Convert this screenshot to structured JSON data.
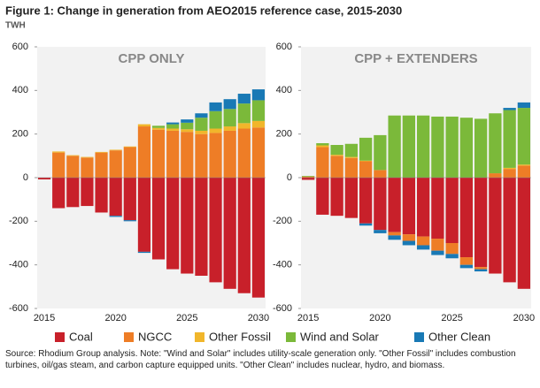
{
  "title": "Figure 1: Change in generation from AEO2015 reference case, 2015-2030",
  "unit": "TWH",
  "source": "Source: Rhodium Group analysis. Note: \"Wind and Solar\" includes utility-scale generation only. \"Other Fossil\" includes combustion turbines, oil/gas steam, and carbon capture equipped units. \"Other Clean\" includes nuclear, hydro, and biomass.",
  "chart_data": [
    {
      "type": "stacked-bar",
      "title": "CPP ONLY",
      "categories": [
        "2015",
        null,
        null,
        null,
        null,
        "2020",
        null,
        null,
        null,
        null,
        "2025",
        null,
        null,
        null,
        null,
        "2030"
      ],
      "ylim": [
        -600,
        600
      ],
      "yticks": [
        -600,
        -400,
        -200,
        0,
        200,
        400,
        600
      ],
      "series": [
        {
          "name": "Coal",
          "color": "#c8202a",
          "values": [
            -8,
            -140,
            -135,
            -130,
            -160,
            -175,
            -195,
            -340,
            -375,
            -420,
            -440,
            -450,
            -480,
            -510,
            -530,
            -550
          ]
        },
        {
          "name": "NGCC",
          "color": "#ee7d26",
          "values": [
            0,
            115,
            100,
            92,
            115,
            125,
            140,
            235,
            220,
            215,
            210,
            200,
            205,
            215,
            225,
            230
          ]
        },
        {
          "name": "Other Fossil",
          "color": "#f1b62b",
          "values": [
            0,
            5,
            3,
            3,
            3,
            3,
            3,
            10,
            8,
            10,
            12,
            15,
            20,
            20,
            25,
            30
          ]
        },
        {
          "name": "Wind and Solar",
          "color": "#7bb93a",
          "values": [
            0,
            0,
            0,
            0,
            0,
            0,
            0,
            0,
            10,
            20,
            30,
            60,
            80,
            80,
            90,
            95
          ]
        },
        {
          "name": "Other Clean",
          "color": "#1979b5",
          "values": [
            0,
            0,
            0,
            0,
            0,
            -5,
            -5,
            -5,
            0,
            8,
            15,
            20,
            40,
            45,
            45,
            50
          ]
        }
      ]
    },
    {
      "type": "stacked-bar",
      "title": "CPP + EXTENDERS",
      "categories": [
        "2015",
        null,
        null,
        null,
        null,
        "2020",
        null,
        null,
        null,
        null,
        "2025",
        null,
        null,
        null,
        null,
        "2030"
      ],
      "ylim": [
        -600,
        600
      ],
      "yticks": [
        -600,
        -400,
        -200,
        0,
        200,
        400,
        600
      ],
      "series": [
        {
          "name": "Coal",
          "color": "#c8202a",
          "values": [
            -10,
            -170,
            -175,
            -185,
            -210,
            -240,
            -250,
            -260,
            -270,
            -280,
            -300,
            -365,
            -410,
            -440,
            -480,
            -510
          ]
        },
        {
          "name": "NGCC",
          "color": "#ee7d26",
          "values": [
            5,
            140,
            100,
            90,
            75,
            35,
            -15,
            -30,
            -40,
            -55,
            -50,
            -35,
            -10,
            20,
            40,
            55
          ]
        },
        {
          "name": "Other Fossil",
          "color": "#f1b62b",
          "values": [
            0,
            8,
            5,
            5,
            3,
            0,
            0,
            0,
            0,
            0,
            0,
            0,
            0,
            0,
            5,
            5
          ]
        },
        {
          "name": "Wind and Solar",
          "color": "#7bb93a",
          "values": [
            3,
            10,
            45,
            60,
            105,
            160,
            285,
            285,
            285,
            280,
            280,
            275,
            270,
            275,
            265,
            260
          ]
        },
        {
          "name": "Other Clean",
          "color": "#1979b5",
          "values": [
            0,
            0,
            0,
            0,
            -10,
            -15,
            -20,
            -20,
            -20,
            -20,
            -20,
            -15,
            -10,
            0,
            10,
            25
          ]
        }
      ]
    }
  ]
}
